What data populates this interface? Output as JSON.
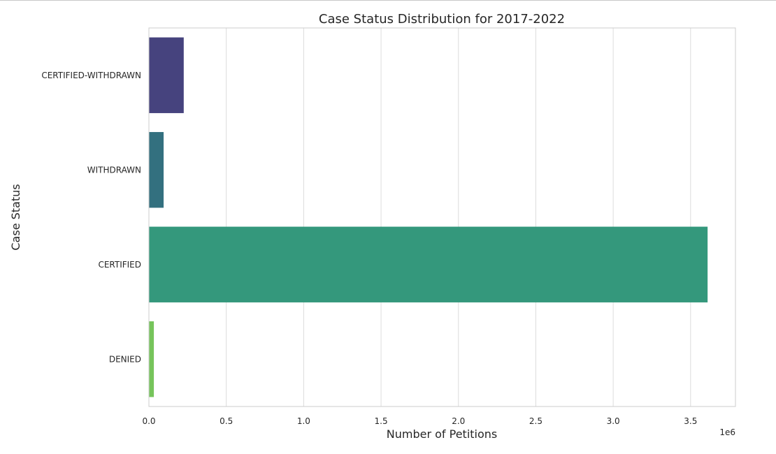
{
  "chart_data": {
    "type": "bar",
    "orientation": "horizontal",
    "title": "Case Status Distribution for 2017-2022",
    "xlabel": "Number of Petitions",
    "ylabel": "Case Status",
    "x_offset_label": "1e6",
    "categories": [
      "CERTIFIED-WITHDRAWN",
      "WITHDRAWN",
      "CERTIFIED",
      "DENIED"
    ],
    "values": [
      225000,
      95000,
      3610000,
      32000
    ],
    "colors": [
      "#46437e",
      "#33707f",
      "#34987c",
      "#76c45b"
    ],
    "x_ticks": [
      0,
      500000,
      1000000,
      1500000,
      2000000,
      2500000,
      3000000,
      3500000
    ],
    "x_tick_labels": [
      "0.0",
      "0.5",
      "1.0",
      "1.5",
      "2.0",
      "2.5",
      "3.0",
      "3.5"
    ],
    "xlim": [
      0,
      3790000
    ],
    "grid": "vertical",
    "legend": "none"
  }
}
